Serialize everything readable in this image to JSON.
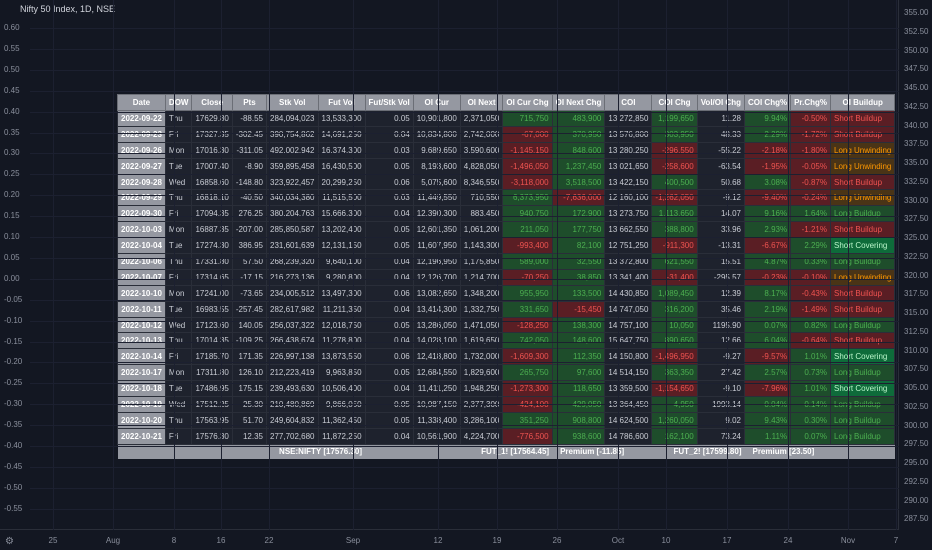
{
  "chart": {
    "title": "Nifty 50 Index, 1D, NSE",
    "left_axis": [
      "0.60",
      "0.55",
      "0.50",
      "0.45",
      "0.40",
      "0.35",
      "0.30",
      "0.25",
      "0.20",
      "0.15",
      "0.10",
      "0.05",
      "0.00",
      "-0.05",
      "-0.10",
      "-0.15",
      "-0.20",
      "-0.25",
      "-0.30",
      "-0.35",
      "-0.40",
      "-0.45",
      "-0.50",
      "-0.55"
    ],
    "right_axis": [
      "355.00",
      "350.00",
      "345.00",
      "340.00",
      "335.00",
      "330.00",
      "325.00",
      "320.00",
      "315.00",
      "310.00",
      "305.00",
      "300.00",
      "295.00",
      "290.00",
      "285.00"
    ],
    "right_axis_top": [
      "355.00",
      "352.50",
      "350.00",
      "347.50",
      "345.00",
      "342.50",
      "340.00",
      "337.50",
      "335.00",
      "332.50",
      "330.00",
      "327.50",
      "325.00",
      "322.50",
      "320.00",
      "317.50",
      "315.00",
      "312.50",
      "310.00",
      "307.50",
      "305.00",
      "302.50",
      "300.00",
      "297.50",
      "295.00",
      "292.50",
      "290.00",
      "287.50"
    ],
    "bottom_axis": [
      "25",
      "Aug",
      "8",
      "16",
      "22",
      "Sep",
      "12",
      "19",
      "26",
      "Oct",
      "10",
      "17",
      "24",
      "Nov",
      "7"
    ]
  },
  "table": {
    "headers": [
      "Date",
      "DOW",
      "Close",
      "Pts",
      "Stk Vol",
      "Fut Vol",
      "Fut/Stk Vol",
      "OI Cur",
      "OI Next",
      "OI Cur Chg",
      "OI Next Chg",
      "COI",
      "COI Chg",
      "Vol/OI Chg",
      "COI Chg%",
      "Pr.Chg%",
      "OI Buildup"
    ],
    "rows": [
      [
        "2022-09-22",
        "Thu",
        "17629.80",
        "-88.55",
        "284,094,023",
        "13,533,300",
        "0.05",
        "10,901,800",
        "2,371,050",
        "715,750",
        "483,900",
        "13,272,850",
        "1,199,650",
        "11.28",
        "9.94%",
        "-0.50%",
        "Short Buildup"
      ],
      [
        "2022-09-23",
        "Fri",
        "17327.35",
        "-302.45",
        "390,754,862",
        "14,691,250",
        "0.04",
        "10,834,800",
        "2,742,000",
        "-67,000",
        "370,950",
        "13,576,800",
        "303,950",
        "48.33",
        "2.29%",
        "-1.72%",
        "Short Buildup"
      ],
      [
        "2022-09-26",
        "Mon",
        "17016.30",
        "-311.05",
        "492,002,942",
        "16,374,300",
        "0.03",
        "9,689,650",
        "3,590,600",
        "-1,145,150",
        "848,600",
        "13,280,250",
        "-296,550",
        "-55.22",
        "-2.18%",
        "-1.80%",
        "Long Unwinding"
      ],
      [
        "2022-09-27",
        "Tue",
        "17007.40",
        "-8.90",
        "359,895,458",
        "16,430,500",
        "0.05",
        "8,193,600",
        "4,828,050",
        "-1,496,050",
        "1,237,450",
        "13,021,650",
        "-258,600",
        "-63.54",
        "-1.95%",
        "-0.05%",
        "Long Unwinding"
      ],
      [
        "2022-09-28",
        "Wed",
        "16858.60",
        "-148.80",
        "323,922,457",
        "20,299,250",
        "0.06",
        "5,075,600",
        "8,346,550",
        "-3,118,000",
        "3,518,500",
        "13,422,150",
        "400,500",
        "50.68",
        "3.08%",
        "-0.87%",
        "Short Buildup"
      ],
      [
        "2022-09-29",
        "Thu",
        "16818.10",
        "-40.50",
        "340,034,380",
        "11,515,500",
        "0.03",
        "11,449,550",
        "710,550",
        "6,373,950",
        "-7,636,000",
        "12,160,100",
        "-1,262,050",
        "-9.12",
        "-9.40%",
        "-0.24%",
        "Long Unwinding"
      ],
      [
        "2022-09-30",
        "Fri",
        "17094.35",
        "276.25",
        "380,204,763",
        "15,666,300",
        "0.04",
        "12,390,300",
        "883,450",
        "940,750",
        "172,900",
        "13,273,750",
        "1,113,650",
        "14.07",
        "9.16%",
        "1.64%",
        "Long Buildup"
      ],
      [
        "2022-10-03",
        "Mon",
        "16887.35",
        "-207.00",
        "285,850,587",
        "13,202,400",
        "0.05",
        "12,601,350",
        "1,061,200",
        "211,050",
        "177,750",
        "13,662,550",
        "388,800",
        "33.96",
        "2.93%",
        "-1.21%",
        "Short Buildup"
      ],
      [
        "2022-10-04",
        "Tue",
        "17274.30",
        "386.95",
        "231,601,639",
        "12,131,150",
        "0.05",
        "11,607,950",
        "1,143,300",
        "-993,400",
        "82,100",
        "12,751,250",
        "-911,300",
        "-13.31",
        "-6.67%",
        "2.29%",
        "Short Covering"
      ],
      [
        "2022-10-06",
        "Thu",
        "17331.80",
        "57.50",
        "268,239,320",
        "9,640,100",
        "0.04",
        "12,196,950",
        "1,175,850",
        "589,000",
        "32,550",
        "13,372,800",
        "621,550",
        "15.51",
        "4.87%",
        "0.33%",
        "Long Buildup"
      ],
      [
        "2022-10-07",
        "Fri",
        "17314.65",
        "-17.15",
        "216,273,136",
        "9,280,800",
        "0.04",
        "12,126,700",
        "1,214,700",
        "-70,250",
        "38,850",
        "13,341,400",
        "-31,400",
        "-295.57",
        "-0.23%",
        "-0.10%",
        "Long Unwinding"
      ],
      [
        "2022-10-10",
        "Mon",
        "17241.00",
        "-73.65",
        "234,005,512",
        "13,497,300",
        "0.06",
        "13,082,650",
        "1,348,200",
        "955,950",
        "133,500",
        "14,430,850",
        "1,089,450",
        "12.39",
        "8.17%",
        "-0.43%",
        "Short Buildup"
      ],
      [
        "2022-10-11",
        "Tue",
        "16983.55",
        "-257.45",
        "282,617,982",
        "11,211,350",
        "0.04",
        "13,414,300",
        "1,332,750",
        "331,650",
        "-15,450",
        "14,747,050",
        "316,200",
        "35.46",
        "2.19%",
        "-1.49%",
        "Short Buildup"
      ],
      [
        "2022-10-12",
        "Wed",
        "17123.60",
        "140.05",
        "256,037,322",
        "12,018,750",
        "0.05",
        "13,286,050",
        "1,471,050",
        "-128,250",
        "138,300",
        "14,757,100",
        "10,050",
        "1195.90",
        "0.07%",
        "0.82%",
        "Long Buildup"
      ],
      [
        "2022-10-13",
        "Thu",
        "17014.35",
        "-109.25",
        "266,438,674",
        "11,278,800",
        "0.04",
        "14,028,100",
        "1,619,650",
        "742,050",
        "148,600",
        "15,647,750",
        "890,650",
        "12.66",
        "6.04%",
        "-0.64%",
        "Short Buildup"
      ],
      [
        "2022-10-14",
        "Fri",
        "17185.70",
        "171.35",
        "226,997,138",
        "13,873,550",
        "0.06",
        "12,418,800",
        "1,732,000",
        "-1,609,300",
        "112,350",
        "14,150,800",
        "-1,496,950",
        "-9.27",
        "-9.57%",
        "1.01%",
        "Short Covering"
      ],
      [
        "2022-10-17",
        "Mon",
        "17311.80",
        "126.10",
        "212,223,419",
        "9,963,850",
        "0.05",
        "12,684,550",
        "1,829,600",
        "265,750",
        "97,600",
        "14,514,150",
        "363,350",
        "27.42",
        "2.57%",
        "0.73%",
        "Long Buildup"
      ],
      [
        "2022-10-18",
        "Tue",
        "17486.95",
        "175.15",
        "239,493,630",
        "10,506,400",
        "0.04",
        "11,411,250",
        "1,948,250",
        "-1,273,300",
        "118,650",
        "13,359,500",
        "-1,154,650",
        "-9.10",
        "-7.96%",
        "1.01%",
        "Short Covering"
      ],
      [
        "2022-10-19",
        "Wed",
        "17512.25",
        "25.30",
        "210,480,869",
        "9,866,050",
        "0.05",
        "10,987,150",
        "2,377,300",
        "-424,100",
        "429,050",
        "13,364,450",
        "4,950",
        "1993.14",
        "0.04%",
        "0.14%",
        "Long Buildup"
      ],
      [
        "2022-10-20",
        "Thu",
        "17563.95",
        "51.70",
        "249,604,832",
        "11,362,450",
        "0.05",
        "11,338,400",
        "3,286,100",
        "351,250",
        "908,800",
        "14,624,500",
        "1,260,050",
        "9.02",
        "9.43%",
        "0.30%",
        "Long Buildup"
      ],
      [
        "2022-10-21",
        "Fri",
        "17576.30",
        "12.35",
        "277,702,680",
        "11,872,250",
        "0.04",
        "10,561,900",
        "4,224,700",
        "-776,500",
        "938,600",
        "14,786,600",
        "162,100",
        "73.24",
        "1.11%",
        "0.07%",
        "Long Buildup"
      ]
    ],
    "footer": {
      "spot": "NSE:NIFTY [17576.30]",
      "fut1": "FUT_1! [17564.45]",
      "prem1": "Premium [-11.85]",
      "fut2": "FUT_2! [17599.80]",
      "prem2": "Premium [23.50]"
    }
  }
}
